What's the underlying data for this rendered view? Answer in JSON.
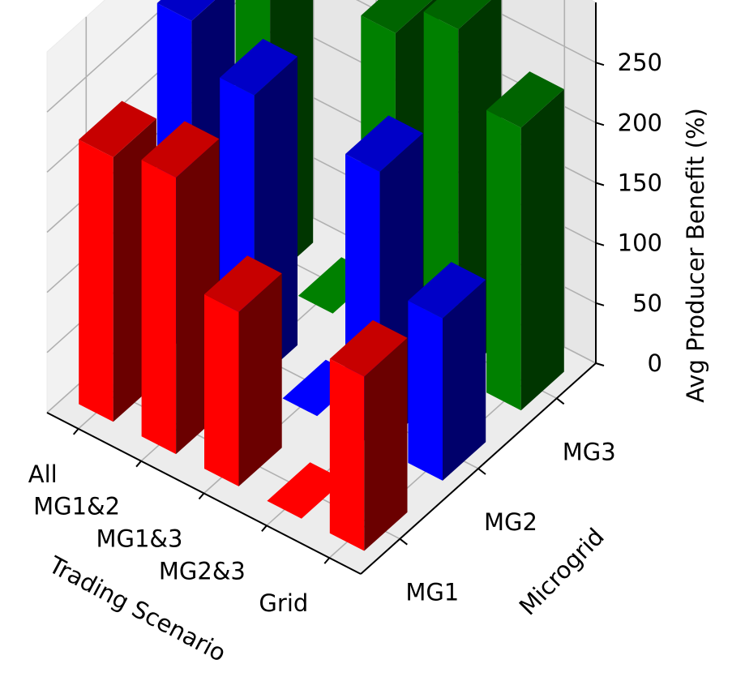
{
  "chart_data": {
    "type": "bar3d",
    "title": "",
    "xlabel": "Trading Scenario",
    "ylabel": "Microgrid",
    "zlabel": "Avg Producer Benefit (%)",
    "x_categories": [
      "All",
      "MG1&2",
      "MG1&3",
      "MG2&3",
      "Grid"
    ],
    "y_categories": [
      "MG1",
      "MG2",
      "MG3"
    ],
    "z_ticks": [
      "0",
      "50",
      "100",
      "150",
      "200",
      "250"
    ],
    "zlim": [
      0,
      300
    ],
    "series": [
      {
        "name": "MG1",
        "color": "#ff0000",
        "values": [
          220,
          230,
          145,
          0,
          145
        ]
      },
      {
        "name": "MG2",
        "color": "#0000ff",
        "values": [
          275,
          240,
          0,
          230,
          135
        ]
      },
      {
        "name": "MG3",
        "color": "#008000",
        "values": [
          300,
          0,
          260,
          290,
          235
        ]
      }
    ],
    "grid": true
  }
}
